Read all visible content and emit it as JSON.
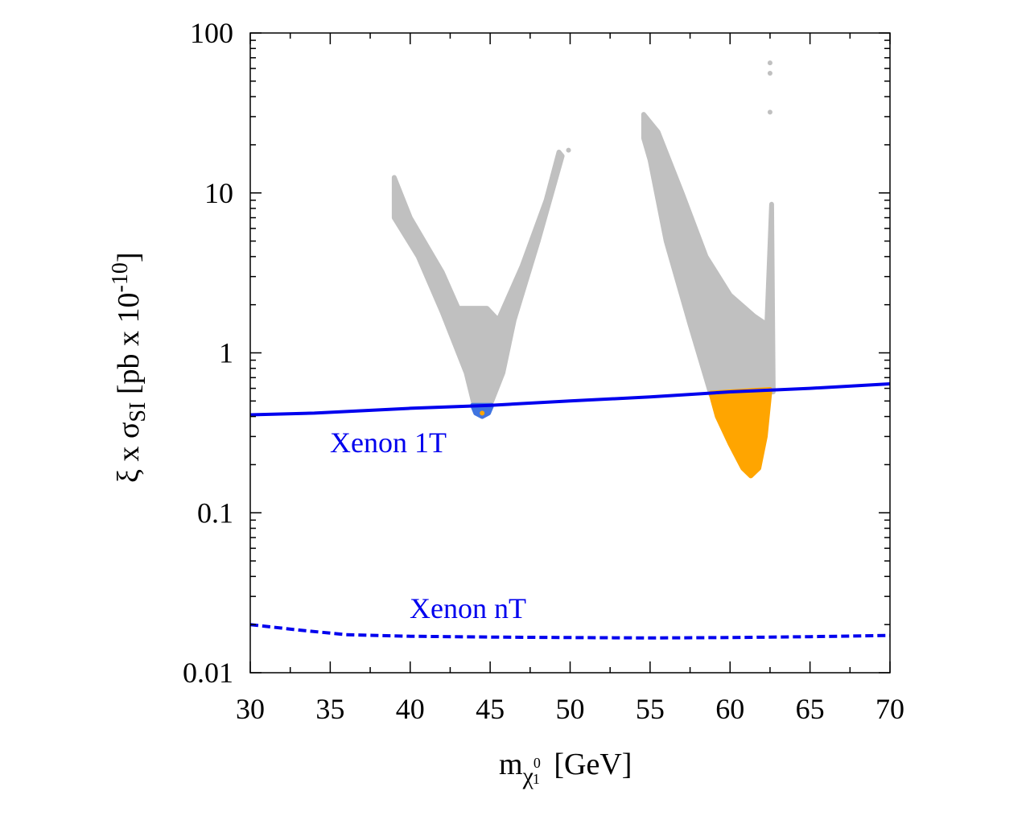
{
  "chart_data": {
    "type": "scatter",
    "xlabel": "m",
    "xlabel_sub": "χ",
    "xlabel_sub_sup": "0",
    "xlabel_sub_sub": "1",
    "xlabel_unit": "[GeV]",
    "ylabel_prefix": "ξ x σ",
    "ylabel_sub": "SI",
    "ylabel_unit": "[pb x 10",
    "ylabel_exp": "-10",
    "ylabel_end": "]",
    "xlim": [
      30,
      70
    ],
    "ylim": [
      0.01,
      100
    ],
    "yscale": "log",
    "x_ticks": [
      "30",
      "35",
      "40",
      "45",
      "50",
      "55",
      "60",
      "65",
      "70"
    ],
    "y_ticks": [
      {
        "value": 0.01,
        "label": "0.01"
      },
      {
        "value": 0.1,
        "label": "0.1"
      },
      {
        "value": 1,
        "label": "1"
      },
      {
        "value": 10,
        "label": "10"
      },
      {
        "value": 100,
        "label": "100"
      }
    ],
    "colors": {
      "excluded": "#c0c0c0",
      "allowed_z": "#3f74e0",
      "allowed_h": "#ffa500",
      "limit_line": "#0000ee"
    },
    "limits": [
      {
        "name": "Xenon 1T",
        "label": "Xenon 1T",
        "style": "solid",
        "x": [
          30,
          34,
          40,
          45,
          50,
          55,
          60,
          65,
          70
        ],
        "y": [
          0.41,
          0.42,
          0.45,
          0.47,
          0.5,
          0.53,
          0.57,
          0.6,
          0.64
        ]
      },
      {
        "name": "Xenon nT",
        "label": "Xenon nT",
        "style": "dashed",
        "x": [
          30,
          33,
          36,
          40,
          45,
          50,
          55,
          60,
          65,
          70
        ],
        "y": [
          0.02,
          0.0185,
          0.0173,
          0.0169,
          0.0167,
          0.0166,
          0.0165,
          0.0166,
          0.0168,
          0.0171
        ]
      }
    ],
    "regions": [
      {
        "name": "Z-funnel excluded points",
        "color": "excluded",
        "bounds": [
          [
            39,
            12.5
          ],
          [
            40,
            7
          ],
          [
            42,
            3.2
          ],
          [
            43,
            1.9
          ],
          [
            44,
            1.9
          ],
          [
            44.8,
            1.9
          ],
          [
            45.5,
            1.6
          ],
          [
            47,
            3.5
          ],
          [
            48.5,
            9
          ],
          [
            49.3,
            18
          ],
          [
            49.5,
            17
          ],
          [
            48,
            5
          ],
          [
            46.5,
            1.6
          ],
          [
            45.8,
            0.75
          ],
          [
            45,
            0.47
          ],
          [
            44,
            0.47
          ],
          [
            43.5,
            0.75
          ],
          [
            42,
            1.8
          ],
          [
            40.5,
            4
          ],
          [
            39,
            7
          ]
        ]
      },
      {
        "name": "Z-funnel allowed points",
        "color": "allowed_z",
        "bounds": [
          [
            43.9,
            0.47
          ],
          [
            45.1,
            0.47
          ],
          [
            44.9,
            0.42
          ],
          [
            44.5,
            0.4
          ],
          [
            44.1,
            0.42
          ]
        ]
      },
      {
        "name": "Higgs-funnel excluded points",
        "color": "excluded",
        "bounds": [
          [
            54.6,
            31
          ],
          [
            55.5,
            24
          ],
          [
            57,
            10
          ],
          [
            58.5,
            4
          ],
          [
            60,
            2.3
          ],
          [
            61.5,
            1.7
          ],
          [
            62.3,
            1.5
          ],
          [
            62.6,
            8.5
          ],
          [
            62.7,
            0.57
          ],
          [
            58.8,
            0.55
          ],
          [
            57.5,
            1.5
          ],
          [
            56,
            5
          ],
          [
            55,
            16
          ],
          [
            54.6,
            22
          ]
        ]
      },
      {
        "name": "Higgs-funnel allowed points",
        "color": "allowed_h",
        "bounds": [
          [
            58.8,
            0.56
          ],
          [
            62.5,
            0.59
          ],
          [
            62.2,
            0.3
          ],
          [
            61.8,
            0.19
          ],
          [
            61.3,
            0.17
          ],
          [
            60.8,
            0.19
          ],
          [
            60,
            0.27
          ],
          [
            59.2,
            0.4
          ]
        ]
      }
    ],
    "outliers": [
      {
        "x": 62.5,
        "y": 65
      },
      {
        "x": 62.5,
        "y": 56
      },
      {
        "x": 62.5,
        "y": 32
      },
      {
        "x": 49.9,
        "y": 18.5
      },
      {
        "x": 44.5,
        "y": 0.42
      }
    ]
  }
}
